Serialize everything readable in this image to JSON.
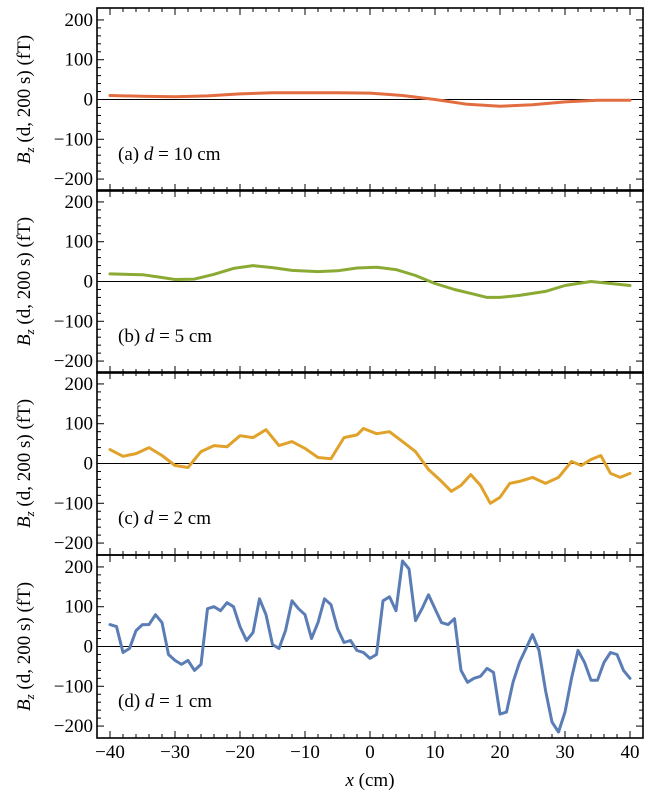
{
  "chart_data": {
    "type": "line",
    "x_axis": {
      "label_var": "x",
      "label_unit": "(cm)",
      "range": [
        -42,
        42
      ],
      "ticks": [
        -40,
        -30,
        -20,
        -10,
        0,
        10,
        20,
        30,
        40
      ],
      "tick_labels": [
        "−40",
        "−30",
        "−20",
        "−10",
        "0",
        "10",
        "20",
        "30",
        "40"
      ]
    },
    "y_axis": {
      "label_var": "B",
      "label_sub": "z",
      "label_args": "(d, 200 s)",
      "label_unit": "(fT)",
      "range": [
        -230,
        230
      ],
      "ticks": [
        -200,
        -100,
        0,
        100,
        200
      ],
      "tick_labels": [
        "−200",
        "−100",
        "0",
        "100",
        "200"
      ]
    },
    "panels": [
      {
        "label_prefix": "(a) ",
        "label_var": "d",
        "label_value": " = 10 cm",
        "color": "#E26D41",
        "points": [
          [
            -40,
            10
          ],
          [
            -35,
            8
          ],
          [
            -30,
            7
          ],
          [
            -25,
            9
          ],
          [
            -20,
            14
          ],
          [
            -15,
            17
          ],
          [
            -10,
            17
          ],
          [
            -5,
            17
          ],
          [
            0,
            16
          ],
          [
            5,
            10
          ],
          [
            10,
            0
          ],
          [
            15,
            -12
          ],
          [
            20,
            -17
          ],
          [
            25,
            -13
          ],
          [
            30,
            -6
          ],
          [
            35,
            -2
          ],
          [
            40,
            -2
          ]
        ]
      },
      {
        "label_prefix": "(b) ",
        "label_var": "d",
        "label_value": " = 5 cm",
        "color": "#8BAA34",
        "points": [
          [
            -40,
            19
          ],
          [
            -35,
            17
          ],
          [
            -32,
            10
          ],
          [
            -30,
            5
          ],
          [
            -27,
            6
          ],
          [
            -24,
            18
          ],
          [
            -21,
            33
          ],
          [
            -18,
            40
          ],
          [
            -15,
            35
          ],
          [
            -12,
            28
          ],
          [
            -8,
            25
          ],
          [
            -5,
            27
          ],
          [
            -2,
            34
          ],
          [
            1,
            36
          ],
          [
            4,
            30
          ],
          [
            7,
            15
          ],
          [
            10,
            -5
          ],
          [
            13,
            -20
          ],
          [
            16,
            -32
          ],
          [
            18,
            -40
          ],
          [
            20,
            -40
          ],
          [
            23,
            -35
          ],
          [
            27,
            -25
          ],
          [
            30,
            -10
          ],
          [
            34,
            0
          ],
          [
            37,
            -5
          ],
          [
            40,
            -10
          ]
        ]
      },
      {
        "label_prefix": "(c) ",
        "label_var": "d",
        "label_value": " = 2 cm",
        "color": "#E0A22A",
        "points": [
          [
            -40,
            35
          ],
          [
            -38,
            18
          ],
          [
            -36,
            25
          ],
          [
            -34,
            40
          ],
          [
            -32,
            20
          ],
          [
            -30,
            -5
          ],
          [
            -28,
            -10
          ],
          [
            -26,
            30
          ],
          [
            -24,
            45
          ],
          [
            -22,
            42
          ],
          [
            -20,
            70
          ],
          [
            -18,
            65
          ],
          [
            -16,
            85
          ],
          [
            -14,
            45
          ],
          [
            -12,
            55
          ],
          [
            -10,
            38
          ],
          [
            -8,
            15
          ],
          [
            -6,
            12
          ],
          [
            -4,
            65
          ],
          [
            -2,
            72
          ],
          [
            -1,
            88
          ],
          [
            1,
            75
          ],
          [
            3,
            80
          ],
          [
            5,
            55
          ],
          [
            7,
            30
          ],
          [
            9,
            -15
          ],
          [
            11,
            -45
          ],
          [
            12.5,
            -70
          ],
          [
            14,
            -55
          ],
          [
            15.5,
            -28
          ],
          [
            17,
            -55
          ],
          [
            18.5,
            -100
          ],
          [
            20,
            -85
          ],
          [
            21.5,
            -50
          ],
          [
            23,
            -45
          ],
          [
            25,
            -35
          ],
          [
            27,
            -50
          ],
          [
            29,
            -35
          ],
          [
            31,
            5
          ],
          [
            32.5,
            -5
          ],
          [
            34,
            10
          ],
          [
            35.5,
            20
          ],
          [
            37,
            -25
          ],
          [
            38.5,
            -35
          ],
          [
            40,
            -25
          ]
        ]
      },
      {
        "label_prefix": "(d) ",
        "label_var": "d",
        "label_value": " = 1 cm",
        "color": "#5B7DB5",
        "points": [
          [
            -40,
            55
          ],
          [
            -39,
            50
          ],
          [
            -38,
            -15
          ],
          [
            -37,
            -5
          ],
          [
            -36,
            40
          ],
          [
            -35,
            55
          ],
          [
            -34,
            55
          ],
          [
            -33,
            80
          ],
          [
            -32,
            60
          ],
          [
            -31,
            -20
          ],
          [
            -30,
            -35
          ],
          [
            -29,
            -45
          ],
          [
            -28,
            -35
          ],
          [
            -27,
            -60
          ],
          [
            -26,
            -45
          ],
          [
            -25,
            95
          ],
          [
            -24,
            100
          ],
          [
            -23,
            90
          ],
          [
            -22,
            110
          ],
          [
            -21,
            100
          ],
          [
            -20,
            50
          ],
          [
            -19,
            15
          ],
          [
            -18,
            35
          ],
          [
            -17,
            120
          ],
          [
            -16,
            80
          ],
          [
            -15,
            5
          ],
          [
            -14,
            -5
          ],
          [
            -13,
            40
          ],
          [
            -12,
            115
          ],
          [
            -11,
            95
          ],
          [
            -10,
            80
          ],
          [
            -9,
            20
          ],
          [
            -8,
            60
          ],
          [
            -7,
            120
          ],
          [
            -6,
            105
          ],
          [
            -5,
            45
          ],
          [
            -4,
            10
          ],
          [
            -3,
            15
          ],
          [
            -2,
            -10
          ],
          [
            -1,
            -15
          ],
          [
            0,
            -30
          ],
          [
            1,
            -20
          ],
          [
            2,
            115
          ],
          [
            3,
            125
          ],
          [
            4,
            90
          ],
          [
            5,
            215
          ],
          [
            6,
            195
          ],
          [
            7,
            65
          ],
          [
            8,
            95
          ],
          [
            9,
            130
          ],
          [
            10,
            95
          ],
          [
            11,
            60
          ],
          [
            12,
            55
          ],
          [
            13,
            70
          ],
          [
            14,
            -60
          ],
          [
            15,
            -90
          ],
          [
            16,
            -80
          ],
          [
            17,
            -75
          ],
          [
            18,
            -55
          ],
          [
            19,
            -65
          ],
          [
            20,
            -170
          ],
          [
            21,
            -165
          ],
          [
            22,
            -90
          ],
          [
            23,
            -40
          ],
          [
            24,
            -5
          ],
          [
            25,
            30
          ],
          [
            26,
            -10
          ],
          [
            27,
            -110
          ],
          [
            28,
            -190
          ],
          [
            29,
            -215
          ],
          [
            30,
            -165
          ],
          [
            31,
            -80
          ],
          [
            32,
            -10
          ],
          [
            33,
            -40
          ],
          [
            34,
            -85
          ],
          [
            35,
            -85
          ],
          [
            36,
            -40
          ],
          [
            37,
            -15
          ],
          [
            38,
            -20
          ],
          [
            39,
            -60
          ],
          [
            40,
            -80
          ]
        ]
      }
    ]
  }
}
